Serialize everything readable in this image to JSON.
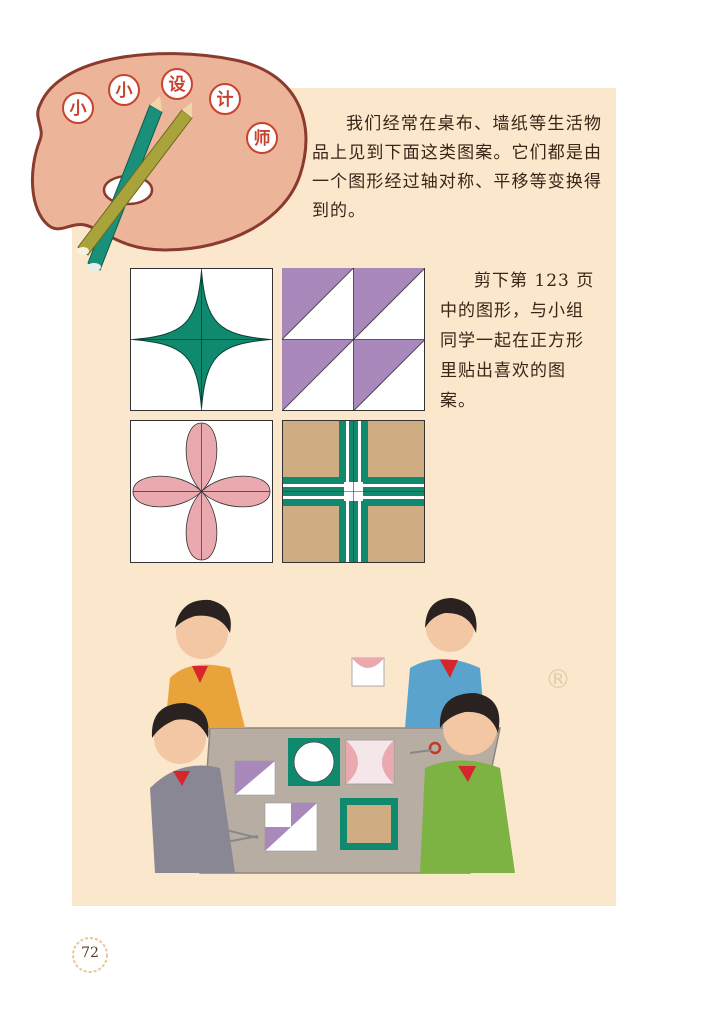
{
  "title": {
    "chars": [
      "小",
      "小",
      "设",
      "计",
      "师"
    ]
  },
  "intro_text": "我们经常在桌布、墙纸等生活物品上见到下面这类图案。它们都是由一个图形经过轴对称、平移等变换得到的。",
  "instruction_text": "剪下第 123 页中的图形，与小组同学一起在正方形里贴出喜欢的图案。",
  "patterns": [
    {
      "name": "four-point-star",
      "color": "#0f8a6e"
    },
    {
      "name": "triangles",
      "color": "#a988bb"
    },
    {
      "name": "four-petal-flower",
      "color": "#eaa9ae"
    },
    {
      "name": "cross-bands",
      "colors": [
        "#cfac82",
        "#0f8a6e"
      ]
    }
  ],
  "watermark_symbol": "®",
  "page_number": "72"
}
